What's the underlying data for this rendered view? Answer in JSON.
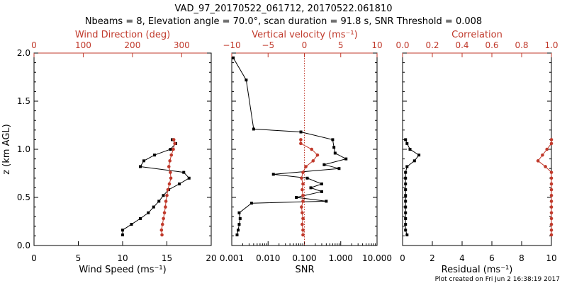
{
  "title_line1": "VAD_97_20170522_061712, 20170522.061810",
  "title_line2": "Nbeams = 8, Elevation angle = 70.0°, scan duration = 91.8 s, SNR Threshold = 0.008",
  "footer": "Plot created on Fri Jun  2 16:38:19 2017",
  "colors": {
    "black_series": "#000000",
    "red_series": "#c0392b"
  },
  "chart_data": [
    {
      "type": "line",
      "ylabel": "z (km AGL)",
      "ylim": [
        0,
        2
      ],
      "yticks": [
        "0.0",
        "0.5",
        "1.0",
        "1.5",
        "2.0"
      ],
      "xlabel_bottom": "Wind Speed (ms⁻¹)",
      "xlim_bottom": [
        0,
        20
      ],
      "xticks_bottom": [
        "0",
        "5",
        "10",
        "15",
        "20"
      ],
      "xlabel_top": "Wind Direction (deg)",
      "xlim_top": [
        0,
        360
      ],
      "xticks_top": [
        "0",
        "100",
        "200",
        "300"
      ],
      "series": [
        {
          "axis": "bottom",
          "color": "black",
          "points": [
            [
              10.0,
              0.11
            ],
            [
              10.0,
              0.16
            ],
            [
              11.0,
              0.22
            ],
            [
              12.0,
              0.28
            ],
            [
              12.9,
              0.34
            ],
            [
              13.5,
              0.4
            ],
            [
              14.1,
              0.46
            ],
            [
              14.6,
              0.52
            ],
            [
              15.2,
              0.58
            ],
            [
              16.4,
              0.64
            ],
            [
              17.5,
              0.7
            ],
            [
              16.9,
              0.76
            ],
            [
              12.0,
              0.82
            ],
            [
              12.4,
              0.88
            ],
            [
              13.6,
              0.94
            ],
            [
              15.4,
              1.0
            ],
            [
              16.0,
              1.06
            ],
            [
              15.6,
              1.1
            ]
          ]
        },
        {
          "axis": "top",
          "color": "red",
          "points": [
            [
              260,
              0.11
            ],
            [
              259,
              0.16
            ],
            [
              261,
              0.22
            ],
            [
              263,
              0.28
            ],
            [
              265,
              0.34
            ],
            [
              267,
              0.4
            ],
            [
              268,
              0.46
            ],
            [
              270,
              0.52
            ],
            [
              272,
              0.58
            ],
            [
              275,
              0.64
            ],
            [
              278,
              0.7
            ],
            [
              277,
              0.76
            ],
            [
              274,
              0.82
            ],
            [
              276,
              0.88
            ],
            [
              279,
              0.94
            ],
            [
              283,
              1.0
            ],
            [
              286,
              1.06
            ],
            [
              284,
              1.1
            ]
          ]
        }
      ]
    },
    {
      "type": "line",
      "ylim": [
        0,
        2
      ],
      "xlabel_bottom": "SNR",
      "xscale_bottom": "log",
      "xlim_bottom": [
        0.001,
        10
      ],
      "xticks_bottom": [
        "0.001",
        "0.010",
        "0.100",
        "1.000",
        "10.000"
      ],
      "xlabel_top": "Vertical velocity (ms⁻¹)",
      "xlim_top": [
        -10,
        10
      ],
      "xticks_top": [
        "−10",
        "−5",
        "0",
        "5",
        "10"
      ],
      "reference_line_top_x": 0,
      "series": [
        {
          "axis": "bottom",
          "color": "black",
          "points": [
            [
              0.0014,
              0.11
            ],
            [
              0.0015,
              0.16
            ],
            [
              0.0016,
              0.22
            ],
            [
              0.0017,
              0.28
            ],
            [
              0.0016,
              0.34
            ],
            [
              0.0035,
              0.44
            ],
            [
              0.4,
              0.46
            ],
            [
              0.06,
              0.5
            ],
            [
              0.3,
              0.56
            ],
            [
              0.15,
              0.6
            ],
            [
              0.3,
              0.64
            ],
            [
              0.12,
              0.7
            ],
            [
              0.014,
              0.74
            ],
            [
              0.9,
              0.8
            ],
            [
              0.35,
              0.84
            ],
            [
              1.4,
              0.9
            ],
            [
              0.7,
              0.96
            ],
            [
              0.65,
              1.02
            ],
            [
              0.6,
              1.1
            ],
            [
              0.08,
              1.18
            ],
            [
              0.004,
              1.21
            ],
            [
              0.0025,
              1.72
            ],
            [
              0.0011,
              1.95
            ]
          ]
        },
        {
          "axis": "top",
          "color": "red",
          "points": [
            [
              -0.2,
              0.11
            ],
            [
              -0.2,
              0.16
            ],
            [
              -0.3,
              0.22
            ],
            [
              -0.2,
              0.28
            ],
            [
              -0.3,
              0.34
            ],
            [
              -0.4,
              0.4
            ],
            [
              -0.2,
              0.46
            ],
            [
              -0.2,
              0.52
            ],
            [
              -0.3,
              0.58
            ],
            [
              -0.2,
              0.64
            ],
            [
              -0.4,
              0.7
            ],
            [
              -0.2,
              0.76
            ],
            [
              0.2,
              0.82
            ],
            [
              1.2,
              0.88
            ],
            [
              1.8,
              0.94
            ],
            [
              1.0,
              1.0
            ],
            [
              -0.5,
              1.06
            ],
            [
              -0.5,
              1.1
            ]
          ]
        }
      ]
    },
    {
      "type": "line",
      "ylim": [
        0,
        2
      ],
      "xlabel_bottom": "Residual (ms⁻¹)",
      "xlim_bottom": [
        0,
        10
      ],
      "xticks_bottom": [
        "0",
        "2",
        "4",
        "6",
        "8",
        "10"
      ],
      "xlabel_top": "Correlation",
      "xlim_top": [
        0,
        1
      ],
      "xticks_top": [
        "0.0",
        "0.2",
        "0.4",
        "0.6",
        "0.8",
        "1.0"
      ],
      "series": [
        {
          "axis": "bottom",
          "color": "black",
          "points": [
            [
              0.3,
              0.11
            ],
            [
              0.2,
              0.16
            ],
            [
              0.2,
              0.22
            ],
            [
              0.2,
              0.28
            ],
            [
              0.2,
              0.34
            ],
            [
              0.2,
              0.4
            ],
            [
              0.2,
              0.46
            ],
            [
              0.2,
              0.52
            ],
            [
              0.2,
              0.58
            ],
            [
              0.2,
              0.64
            ],
            [
              0.2,
              0.7
            ],
            [
              0.2,
              0.76
            ],
            [
              0.3,
              0.82
            ],
            [
              0.8,
              0.88
            ],
            [
              1.1,
              0.94
            ],
            [
              0.5,
              1.0
            ],
            [
              0.3,
              1.06
            ],
            [
              0.2,
              1.1
            ]
          ]
        },
        {
          "axis": "top",
          "color": "red",
          "points": [
            [
              1.0,
              0.11
            ],
            [
              1.0,
              0.16
            ],
            [
              1.0,
              0.22
            ],
            [
              1.0,
              0.28
            ],
            [
              1.0,
              0.34
            ],
            [
              1.0,
              0.4
            ],
            [
              1.0,
              0.46
            ],
            [
              1.0,
              0.52
            ],
            [
              1.0,
              0.58
            ],
            [
              1.0,
              0.64
            ],
            [
              1.0,
              0.7
            ],
            [
              1.0,
              0.76
            ],
            [
              0.96,
              0.82
            ],
            [
              0.91,
              0.88
            ],
            [
              0.94,
              0.94
            ],
            [
              0.97,
              1.0
            ],
            [
              1.0,
              1.06
            ],
            [
              1.0,
              1.1
            ]
          ]
        }
      ]
    }
  ]
}
